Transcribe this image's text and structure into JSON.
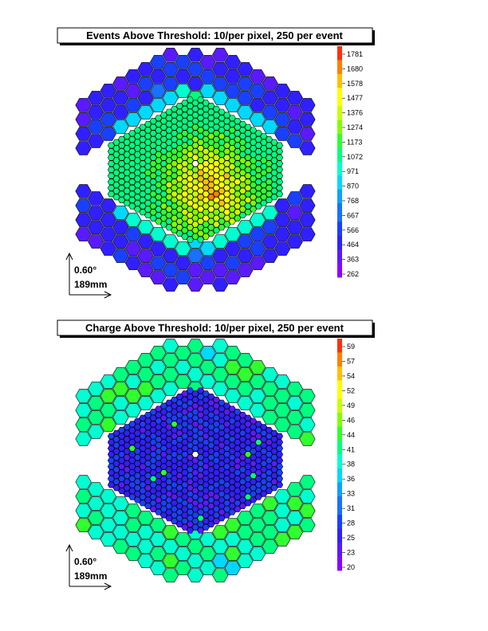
{
  "chart_data": [
    {
      "type": "heatmap",
      "title": "Events Above Threshold: 10/per pixel, 250 per event",
      "colorbar": {
        "ticks": [
          "1781",
          "1680",
          "1578",
          "1477",
          "1376",
          "1274",
          "1173",
          "1072",
          "971",
          "870",
          "768",
          "667",
          "566",
          "464",
          "363",
          "262"
        ],
        "min": 262,
        "max": 1781
      },
      "scale_angle": "0.60°",
      "scale_length": "189mm",
      "pattern": "events"
    },
    {
      "type": "heatmap",
      "title": "Charge Above Threshold: 10/per pixel, 250 per event",
      "colorbar": {
        "ticks": [
          "59",
          "57",
          "54",
          "52",
          "49",
          "46",
          "44",
          "41",
          "38",
          "36",
          "33",
          "31",
          "28",
          "25",
          "23",
          "20"
        ],
        "min": 20,
        "max": 59
      },
      "scale_angle": "0.60°",
      "scale_length": "189mm",
      "pattern": "charge"
    }
  ],
  "colors": {
    "palette": [
      "#8c00ff",
      "#5a1aff",
      "#3020ff",
      "#1a40ff",
      "#1a70ff",
      "#10a0ff",
      "#00d8ff",
      "#00ffd0",
      "#00ff80",
      "#30ff30",
      "#80ff00",
      "#c8ff00",
      "#ffff00",
      "#ffc000",
      "#ff8000",
      "#ff3010"
    ]
  }
}
